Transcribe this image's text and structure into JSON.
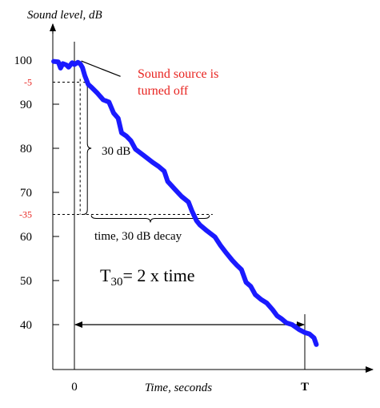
{
  "chart_data": {
    "type": "line",
    "ylabel": "Sound level, dB",
    "xlabel": "Time, seconds",
    "yticks": [
      {
        "value": 100,
        "label": "100"
      },
      {
        "value": 90,
        "label": "90"
      },
      {
        "value": 80,
        "label": "80"
      },
      {
        "value": 70,
        "label": "70"
      },
      {
        "value": 60,
        "label": "60"
      },
      {
        "value": 50,
        "label": "50"
      },
      {
        "value": 40,
        "label": "40"
      }
    ],
    "ref_ticks": [
      {
        "value": 95,
        "label": "-5"
      },
      {
        "value": 65,
        "label": "-35"
      }
    ],
    "xticks": [
      {
        "value": 0,
        "label": "0"
      },
      {
        "value": 1,
        "label": "T"
      }
    ],
    "ylim": [
      32,
      106
    ],
    "xlim": [
      -0.09,
      1.25
    ],
    "series": [
      {
        "color": "#1a1aff",
        "x": [
          -0.09,
          -0.07,
          -0.06,
          -0.05,
          -0.035,
          -0.025,
          -0.01,
          0.0,
          0.015,
          0.025,
          0.035,
          0.045,
          0.06,
          0.075,
          0.1,
          0.125,
          0.15,
          0.17,
          0.19,
          0.205,
          0.225,
          0.245,
          0.265,
          0.3,
          0.34,
          0.365,
          0.39,
          0.405,
          0.44,
          0.465,
          0.495,
          0.51,
          0.53,
          0.545,
          0.575,
          0.61,
          0.635,
          0.66,
          0.685,
          0.705,
          0.725,
          0.745,
          0.765,
          0.785,
          0.81,
          0.835,
          0.86,
          0.88,
          0.9,
          0.92,
          0.945,
          0.975,
          1.0,
          1.02,
          1.04,
          1.05
        ],
        "y": [
          99.7,
          99.6,
          98.2,
          99.2,
          98.9,
          98.4,
          99.4,
          99.0,
          99.5,
          99.2,
          98.3,
          96.5,
          94.5,
          93.8,
          92.5,
          91.0,
          90.5,
          88.0,
          86.8,
          83.5,
          82.8,
          81.7,
          79.8,
          78.4,
          76.8,
          75.9,
          74.8,
          72.5,
          70.5,
          69.1,
          67.8,
          65.8,
          63.6,
          62.6,
          61.3,
          59.9,
          57.9,
          56.2,
          54.6,
          53.5,
          52.5,
          49.6,
          48.7,
          46.8,
          45.7,
          44.9,
          43.4,
          42.0,
          41.3,
          40.4,
          40.0,
          38.9,
          38.2,
          37.9,
          37.0,
          35.5
        ]
      }
    ],
    "decay_start": {
      "x": 0.025,
      "y": 95
    },
    "decay_end": {
      "x": 0.6,
      "y": 65
    },
    "brace_vertical_label": "30 dB",
    "brace_horizontal_label": "time, 30 dB decay",
    "annotation": "Sound source is\nturned off",
    "annotation_color": "#e8231f",
    "annotation_arrow_from": {
      "x": 0.2,
      "y": 96.3
    },
    "annotation_arrow_to": {
      "x": 0.03,
      "y": 99.8
    },
    "span_arrow": {
      "x1": 0.0,
      "x2": 1.0,
      "y": 40
    },
    "formula": {
      "lead": "T",
      "sub": "30",
      "rest": "= 2 x time"
    }
  }
}
